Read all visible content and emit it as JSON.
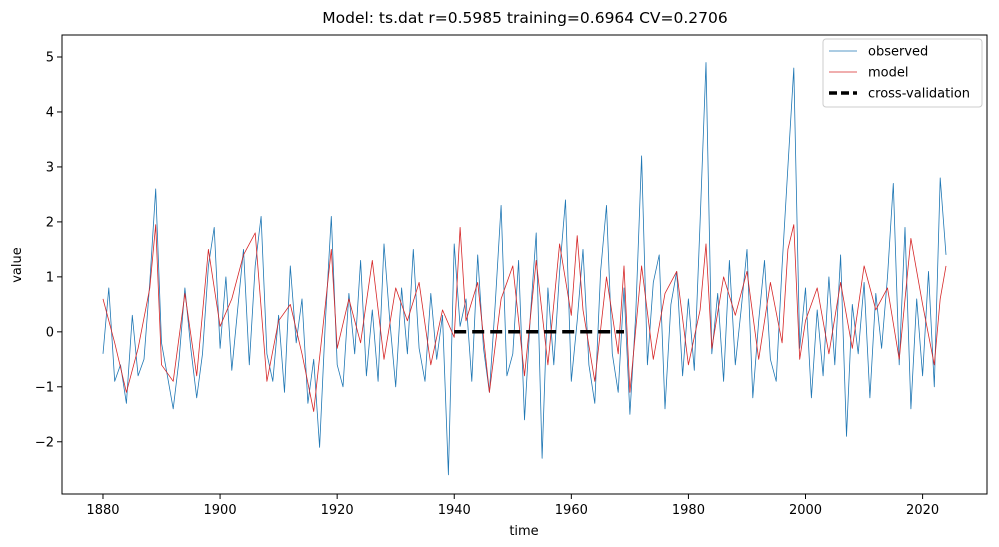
{
  "chart_data": {
    "type": "line",
    "title": "Model: ts.dat  r=0.5985  training=0.6964  CV=0.2706",
    "xlabel": "time",
    "ylabel": "value",
    "xlim": [
      1873,
      2031
    ],
    "ylim": [
      -2.95,
      5.4
    ],
    "xticks": [
      1880,
      1900,
      1920,
      1940,
      1960,
      1980,
      2000,
      2020
    ],
    "xtick_labels": [
      "1880",
      "1900",
      "1920",
      "1940",
      "1960",
      "1980",
      "2000",
      "2020"
    ],
    "yticks": [
      -2,
      -1,
      0,
      1,
      2,
      3,
      4,
      5
    ],
    "ytick_labels": [
      "−2",
      "−1",
      "0",
      "1",
      "2",
      "3",
      "4",
      "5"
    ],
    "grid": false,
    "legend_position": "top-right",
    "series": [
      {
        "name": "observed",
        "color": "#1f77b4",
        "x": [
          1880,
          1881,
          1882,
          1883,
          1884,
          1885,
          1886,
          1887,
          1888,
          1889,
          1890,
          1891,
          1892,
          1893,
          1894,
          1895,
          1896,
          1897,
          1898,
          1899,
          1900,
          1901,
          1902,
          1903,
          1904,
          1905,
          1906,
          1907,
          1908,
          1909,
          1910,
          1911,
          1912,
          1913,
          1914,
          1915,
          1916,
          1917,
          1918,
          1919,
          1920,
          1921,
          1922,
          1923,
          1924,
          1925,
          1926,
          1927,
          1928,
          1929,
          1930,
          1931,
          1932,
          1933,
          1934,
          1935,
          1936,
          1937,
          1938,
          1939,
          1940,
          1941,
          1942,
          1943,
          1944,
          1945,
          1946,
          1947,
          1948,
          1949,
          1950,
          1951,
          1952,
          1953,
          1954,
          1955,
          1956,
          1957,
          1958,
          1959,
          1960,
          1961,
          1962,
          1963,
          1964,
          1965,
          1966,
          1967,
          1968,
          1969,
          1970,
          1971,
          1972,
          1973,
          1974,
          1975,
          1976,
          1977,
          1978,
          1979,
          1980,
          1981,
          1982,
          1983,
          1984,
          1985,
          1986,
          1987,
          1988,
          1989,
          1990,
          1991,
          1992,
          1993,
          1994,
          1995,
          1996,
          1997,
          1998,
          1999,
          2000,
          2001,
          2002,
          2003,
          2004,
          2005,
          2006,
          2007,
          2008,
          2009,
          2010,
          2011,
          2012,
          2013,
          2014,
          2015,
          2016,
          2017,
          2018,
          2019,
          2020,
          2021,
          2022,
          2023,
          2024
        ],
        "values": [
          -0.4,
          0.8,
          -0.9,
          -0.6,
          -1.3,
          0.3,
          -0.8,
          -0.5,
          0.9,
          2.6,
          -0.2,
          -0.8,
          -1.4,
          -0.5,
          0.8,
          -0.3,
          -1.2,
          -0.4,
          1.2,
          1.9,
          -0.3,
          1.0,
          -0.7,
          0.4,
          1.5,
          -0.6,
          1.2,
          2.1,
          -0.4,
          -0.9,
          0.3,
          -1.1,
          1.2,
          -0.2,
          0.6,
          -1.3,
          -0.5,
          -2.1,
          0.2,
          2.1,
          -0.6,
          -1.0,
          0.7,
          -0.4,
          1.3,
          -0.8,
          0.4,
          -0.9,
          1.6,
          0.2,
          -1.0,
          0.8,
          -0.4,
          1.5,
          -0.3,
          -0.9,
          0.7,
          -0.5,
          0.3,
          -2.6,
          1.6,
          0.1,
          0.6,
          -0.9,
          1.4,
          -0.3,
          -1.1,
          0.5,
          2.3,
          -0.8,
          -0.4,
          1.3,
          -1.6,
          0.3,
          1.8,
          -2.3,
          0.8,
          -0.6,
          1.1,
          2.4,
          -0.9,
          0.2,
          1.5,
          -0.6,
          -1.3,
          1.1,
          2.3,
          -0.4,
          -1.1,
          0.8,
          -1.5,
          0.3,
          3.2,
          -0.6,
          0.9,
          1.4,
          -1.4,
          0.5,
          1.1,
          -0.8,
          0.6,
          -0.7,
          2.0,
          4.9,
          -0.4,
          0.7,
          -0.9,
          1.3,
          -0.6,
          0.4,
          1.5,
          -1.2,
          0.2,
          1.3,
          -0.5,
          -0.9,
          1.2,
          3.0,
          4.8,
          -0.3,
          0.8,
          -1.2,
          0.4,
          -0.8,
          1.0,
          -0.6,
          1.4,
          -1.9,
          0.5,
          -0.4,
          0.9,
          -1.2,
          0.7,
          -0.3,
          1.0,
          2.7,
          -0.6,
          1.9,
          -1.4,
          0.6,
          -0.8,
          1.1,
          -1.0,
          2.8,
          1.4
        ]
      },
      {
        "name": "model",
        "color": "#d62728",
        "x": [
          1880,
          1882,
          1884,
          1886,
          1888,
          1889,
          1890,
          1892,
          1894,
          1896,
          1898,
          1900,
          1902,
          1904,
          1906,
          1908,
          1910,
          1912,
          1914,
          1916,
          1918,
          1919,
          1920,
          1922,
          1924,
          1926,
          1928,
          1930,
          1932,
          1934,
          1936,
          1938,
          1940,
          1941,
          1942,
          1944,
          1946,
          1948,
          1950,
          1952,
          1954,
          1956,
          1958,
          1960,
          1961,
          1962,
          1964,
          1966,
          1968,
          1969,
          1970,
          1972,
          1974,
          1976,
          1978,
          1980,
          1982,
          1983,
          1984,
          1986,
          1988,
          1990,
          1992,
          1994,
          1996,
          1997,
          1998,
          1999,
          2000,
          2002,
          2004,
          2006,
          2008,
          2010,
          2012,
          2014,
          2016,
          2018,
          2020,
          2022,
          2023,
          2024
        ],
        "values": [
          0.6,
          -0.2,
          -1.1,
          -0.3,
          0.8,
          1.95,
          -0.6,
          -0.9,
          0.7,
          -0.8,
          1.5,
          0.1,
          0.6,
          1.4,
          1.8,
          -0.9,
          0.2,
          0.5,
          -0.4,
          -1.45,
          0.5,
          1.5,
          -0.3,
          0.6,
          -0.2,
          1.3,
          -0.5,
          0.8,
          0.2,
          0.9,
          -0.6,
          0.4,
          -0.1,
          1.9,
          0.2,
          0.9,
          -1.1,
          0.6,
          1.2,
          -0.8,
          1.3,
          -0.6,
          1.6,
          0.3,
          1.75,
          0.4,
          -0.9,
          1.0,
          -0.4,
          1.2,
          -1.1,
          1.2,
          -0.5,
          0.7,
          1.1,
          -0.6,
          0.4,
          1.6,
          -0.3,
          1.0,
          0.3,
          1.1,
          -0.5,
          0.9,
          -0.2,
          1.5,
          1.95,
          -0.5,
          0.2,
          0.8,
          -0.4,
          0.9,
          -0.3,
          1.2,
          0.4,
          0.8,
          -0.5,
          1.7,
          0.5,
          -0.6,
          0.6,
          1.2
        ]
      },
      {
        "name": "cross-validation",
        "color": "#000000",
        "style": "dashed",
        "x": [
          1940,
          1969
        ],
        "values": [
          0,
          0
        ]
      }
    ]
  }
}
